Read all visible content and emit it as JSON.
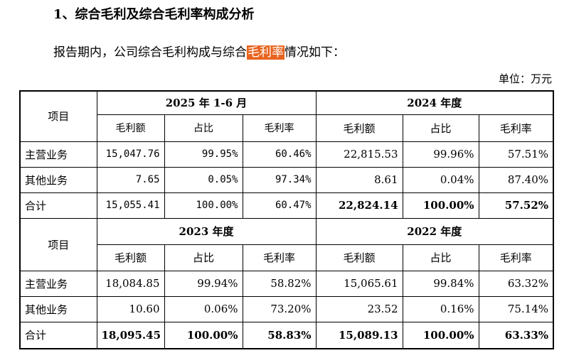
{
  "heading": "1、综合毛利及综合毛利率构成分析",
  "paragraph": {
    "text_before": "报告期内，公司综合毛利构成与综合",
    "highlight": "毛利率",
    "text_after": "情况如下："
  },
  "unit": "单位：万元",
  "table": {
    "blocks": [
      {
        "row_header": "项目",
        "periods": [
          "2025 年 1-6 月",
          "2024 年度"
        ],
        "columns": [
          "毛利额",
          "占比",
          "毛利率",
          "毛利额",
          "占比",
          "毛利率"
        ],
        "rows": [
          [
            "主营业务",
            "15,047.76",
            "99.95%",
            "60.46%",
            "22,815.53",
            "99.96%",
            "57.51%"
          ],
          [
            "其他业务",
            "7.65",
            "0.05%",
            "97.34%",
            "8.61",
            "0.04%",
            "87.40%"
          ],
          [
            "合计",
            "15,055.41",
            "100.00%",
            "60.47%",
            "22,824.14",
            "100.00%",
            "57.52%"
          ]
        ]
      },
      {
        "row_header": "项目",
        "periods": [
          "2023 年度",
          "2022 年度"
        ],
        "columns": [
          "毛利额",
          "占比",
          "毛利率",
          "毛利额",
          "占比",
          "毛利率"
        ],
        "rows": [
          [
            "主营业务",
            "18,084.85",
            "99.94%",
            "58.82%",
            "15,065.61",
            "99.84%",
            "63.32%"
          ],
          [
            "其他业务",
            "10.60",
            "0.06%",
            "73.20%",
            "23.52",
            "0.16%",
            "75.14%"
          ],
          [
            "合计",
            "18,095.45",
            "100.00%",
            "58.83%",
            "15,089.13",
            "100.00%",
            "63.33%"
          ]
        ]
      }
    ]
  }
}
